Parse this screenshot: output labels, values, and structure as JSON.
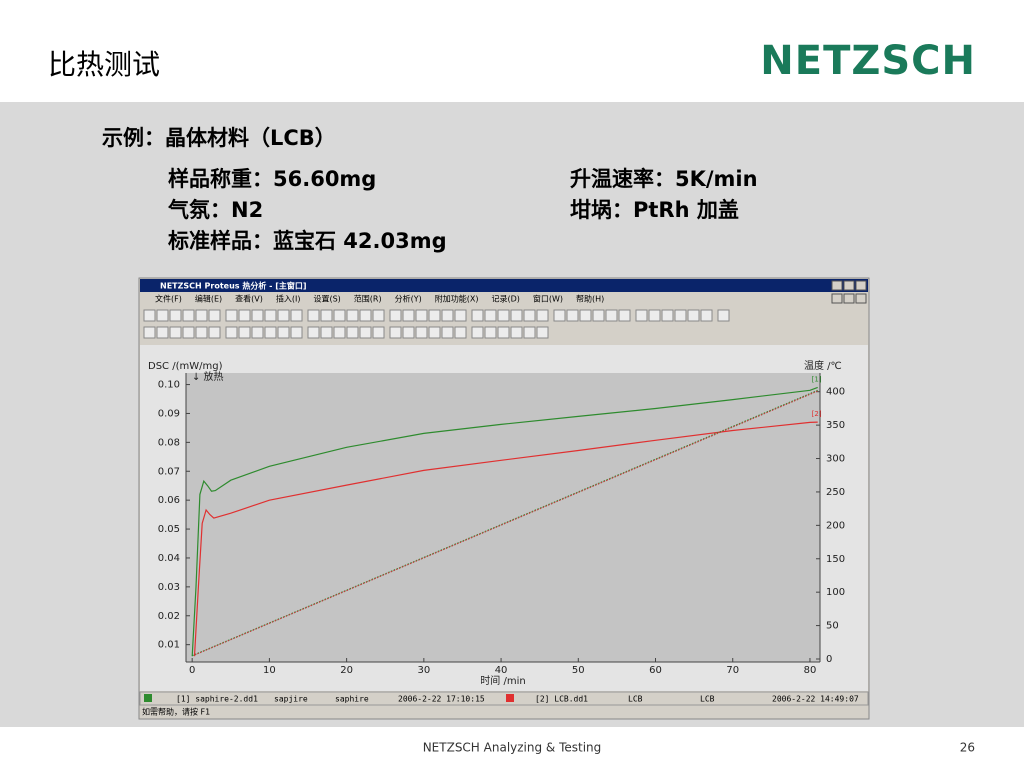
{
  "header": {
    "title": "比热测试",
    "logo": "NETZSCH"
  },
  "content": {
    "example": "示例：晶体材料（LCB）",
    "params": [
      [
        "样品称重：56.60mg",
        "升温速率：5K/min"
      ],
      [
        "气氛：N2",
        "坩埚：PtRh  加盖"
      ],
      [
        "标准样品：蓝宝石  42.03mg"
      ]
    ]
  },
  "window": {
    "title": "NETZSCH Proteus 热分析 - [主窗口]",
    "menu": [
      "文件(F)",
      "编辑(E)",
      "查看(V)",
      "插入(I)",
      "设置(S)",
      "范围(R)",
      "分析(Y)",
      "附加功能(X)",
      "记录(D)",
      "窗口(W)",
      "帮助(H)"
    ],
    "status": [
      "[1] saphire-2.dd1",
      "sapjire",
      "saphire",
      "2006-2-22 17:10:15",
      "[2] LCB.dd1",
      "LCB",
      "LCB",
      "2006-2-22 14:49:07"
    ],
    "help": "如需帮助，请按 F1"
  },
  "chart_data": {
    "type": "line",
    "xlabel": "时间 /min",
    "ylabel": "DSC /(mW/mg)",
    "y2label": "温度 /℃",
    "exo": "↓ 放热",
    "xlim": [
      -0.8,
      81.3
    ],
    "xticks": [
      0,
      10,
      20,
      30,
      40,
      50,
      60,
      70,
      80
    ],
    "ylim": [
      0.004,
      0.104
    ],
    "yticks": [
      0.01,
      0.02,
      0.03,
      0.04,
      0.05,
      0.06,
      0.07,
      0.08,
      0.09,
      {
        "value": 0.1,
        "label": "0.10"
      }
    ],
    "y2lim": [
      -4.5,
      428
    ],
    "y2ticks": [
      0,
      50,
      100,
      150,
      200,
      250,
      300,
      350,
      400
    ],
    "series": [
      {
        "name": "[1]",
        "color": "#2e8b2e",
        "x": [
          0,
          0.5,
          1,
          1.5,
          2,
          2.5,
          3,
          5,
          10,
          20,
          30,
          40,
          50,
          60,
          70,
          80,
          81
        ],
        "values": [
          0.006,
          0.03,
          0.062,
          0.0666,
          0.065,
          0.0631,
          0.0633,
          0.0669,
          0.0717,
          0.0783,
          0.0831,
          0.0862,
          0.089,
          0.0917,
          0.0948,
          0.098,
          0.099
        ]
      },
      {
        "name": "[2]",
        "color": "#e03030",
        "x": [
          0.3,
          0.8,
          1.3,
          1.8,
          2.3,
          2.8,
          5,
          10,
          20,
          30,
          40,
          50,
          60,
          70,
          80,
          81
        ],
        "values": [
          0.006,
          0.03,
          0.052,
          0.0566,
          0.055,
          0.0538,
          0.0555,
          0.06,
          0.0652,
          0.0703,
          0.0738,
          0.0772,
          0.0807,
          0.0841,
          0.0869,
          0.087
        ]
      },
      {
        "color": "#2e8b2e",
        "axis": "y2",
        "dotted": true,
        "x": [
          0,
          81
        ],
        "values": [
          5,
          402
        ]
      },
      {
        "color": "#c04040",
        "axis": "y2",
        "dotted": true,
        "x": [
          0.3,
          81
        ],
        "values": [
          6,
          401
        ]
      }
    ]
  },
  "footer": {
    "text": "NETZSCH Analyzing & Testing",
    "page": 26
  }
}
